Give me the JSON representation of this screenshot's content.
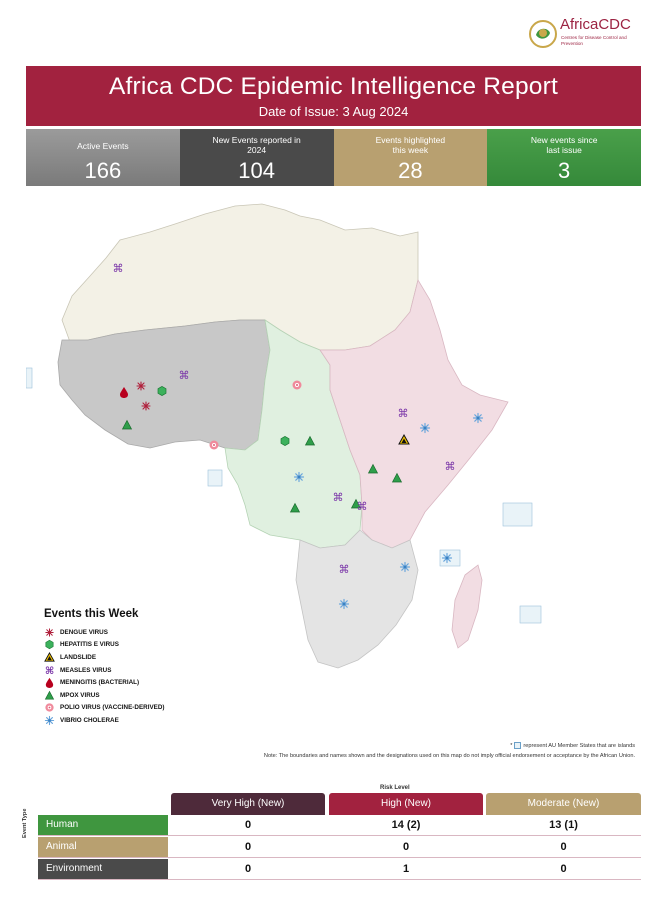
{
  "logo": {
    "name": "AfricaCDC",
    "tagline": "Centres for Disease Control and Prevention"
  },
  "header": {
    "title": "Africa CDC Epidemic Intelligence Report",
    "date": "Date of Issue: 3 Aug 2024"
  },
  "stats": [
    {
      "label": "Active Events",
      "value": "166",
      "color": "#8a8a8a"
    },
    {
      "label": "New Events reported in 2024",
      "value": "104",
      "color": "#4a4a4a"
    },
    {
      "label": "Events highlighted this week",
      "value": "28",
      "color": "#b8a070"
    },
    {
      "label": "New events since last issue",
      "value": "3",
      "color": "#3f963f"
    }
  ],
  "legend": {
    "title": "Events this Week",
    "items": [
      {
        "label": "DENGUE VIRUS",
        "icon": "dengue-icon"
      },
      {
        "label": "HEPATITIS E VIRUS",
        "icon": "hepatitis-icon"
      },
      {
        "label": "LANDSLIDE",
        "icon": "landslide-icon"
      },
      {
        "label": "MEASLES VIRUS",
        "icon": "measles-icon"
      },
      {
        "label": "MENINGITIS (BACTERIAL)",
        "icon": "meningitis-icon"
      },
      {
        "label": "MPOX VIRUS",
        "icon": "mpox-icon"
      },
      {
        "label": "POLIO VIRUS (VACCINE-DERIVED)",
        "icon": "polio-icon"
      },
      {
        "label": "VIBRIO CHOLERAE",
        "icon": "cholera-icon"
      }
    ]
  },
  "notes": {
    "islands_prefix": "*",
    "islands": "represent AU Member States that are islands",
    "disclaimer": "Note: The boundaries and names shown and the designations used on this map do not imply official endorsement or acceptance by the African Union."
  },
  "risk_table": {
    "risk_label": "Risk Level",
    "event_type_label": "Event Type",
    "columns": [
      "Very High (New)",
      "High (New)",
      "Moderate (New)"
    ],
    "rows": [
      {
        "label": "Human",
        "values": [
          "0",
          "14 (2)",
          "13 (1)"
        ],
        "color": "#3f963f"
      },
      {
        "label": "Animal",
        "values": [
          "0",
          "0",
          "0"
        ],
        "color": "#b8a070"
      },
      {
        "label": "Environment",
        "values": [
          "0",
          "1",
          "0"
        ],
        "color": "#4a4a4a"
      }
    ]
  },
  "colors": {
    "banner": "#a2223f",
    "north_region": "#f3f1e6",
    "west_region": "#c8c8c8",
    "central_region": "#e0f0e0",
    "east_region": "#f2dde3",
    "south_region": "#e4e4e4"
  }
}
